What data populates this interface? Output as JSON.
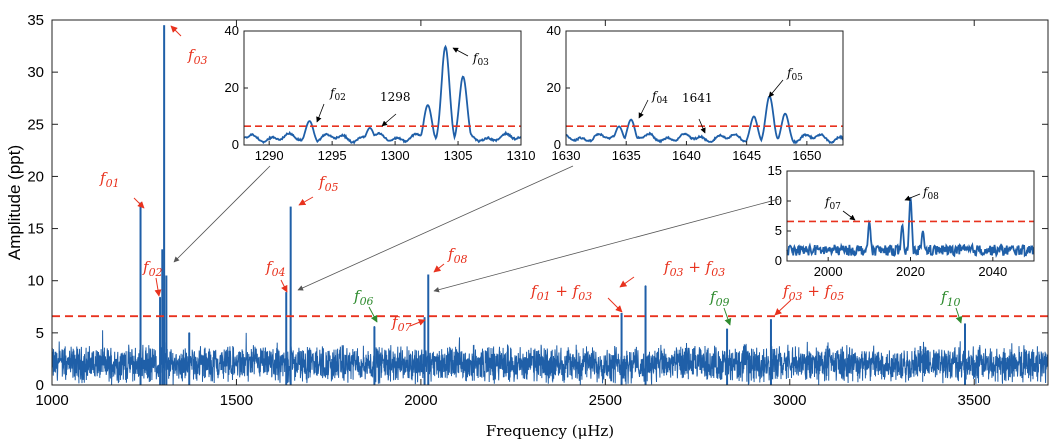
{
  "chart_data": {
    "type": "line",
    "xlabel": "Frequency (μHz)",
    "ylabel": "Amplitude (ppt)",
    "xlim": [
      1000,
      3700
    ],
    "ylim": [
      0,
      35
    ],
    "xticks": [
      "1000",
      "1500",
      "2000",
      "2500",
      "3000",
      "3500"
    ],
    "yticks": [
      "0",
      "5",
      "10",
      "15",
      "20",
      "25",
      "30",
      "35"
    ],
    "threshold": 6.6,
    "colors": {
      "series": "#1f5fa8",
      "threshold": "#e8321e",
      "red_label": "#e8321e",
      "green_label": "#2e8b2e"
    },
    "peaks": [
      {
        "x": 1240,
        "y": 17.5
      },
      {
        "x": 1293,
        "y": 8.4
      },
      {
        "x": 1299,
        "y": 13.0
      },
      {
        "x": 1304,
        "y": 34.5
      },
      {
        "x": 1310,
        "y": 10.5
      },
      {
        "x": 1372,
        "y": 5.0
      },
      {
        "x": 1635,
        "y": 8.9
      },
      {
        "x": 1647,
        "y": 17.1
      },
      {
        "x": 1874,
        "y": 5.6
      },
      {
        "x": 2010,
        "y": 6.5
      },
      {
        "x": 2020,
        "y": 10.6
      },
      {
        "x": 2544,
        "y": 6.9
      },
      {
        "x": 2609,
        "y": 9.5
      },
      {
        "x": 2830,
        "y": 5.4
      },
      {
        "x": 2949,
        "y": 6.3
      },
      {
        "x": 3475,
        "y": 5.9
      }
    ],
    "labels": [
      {
        "base": "f",
        "sub": "01",
        "color": "red"
      },
      {
        "base": "f",
        "sub": "02",
        "color": "red"
      },
      {
        "base": "f",
        "sub": "03",
        "color": "red"
      },
      {
        "base": "f",
        "sub": "04",
        "color": "red"
      },
      {
        "base": "f",
        "sub": "05",
        "color": "red"
      },
      {
        "base": "f",
        "sub": "06",
        "color": "green"
      },
      {
        "base": "f",
        "sub": "07",
        "color": "red"
      },
      {
        "base": "f",
        "sub": "08",
        "color": "red"
      },
      {
        "base": "f",
        "sub": "09",
        "color": "green"
      },
      {
        "base": "f",
        "sub": "10",
        "color": "green"
      },
      {
        "text": "f01 + f03",
        "color": "red"
      },
      {
        "text": "f03 + f03",
        "color": "red"
      },
      {
        "text": "f03 + f05",
        "color": "red"
      }
    ],
    "insets": [
      {
        "xlim": [
          1288,
          1310
        ],
        "ylim": [
          0,
          40
        ],
        "threshold": 6.6,
        "xticks": [
          "1290",
          "1295",
          "1300",
          "1305",
          "1310"
        ],
        "yticks": [
          "0",
          "20",
          "40"
        ],
        "annotations": [
          "f02",
          "1298",
          "f03"
        ],
        "peaks": [
          {
            "x": 1293.2,
            "y": 8.4
          },
          {
            "x": 1298.0,
            "y": 6.0
          },
          {
            "x": 1302.6,
            "y": 14.0
          },
          {
            "x": 1304.0,
            "y": 34.5
          },
          {
            "x": 1305.4,
            "y": 24.0
          }
        ]
      },
      {
        "xlim": [
          1630,
          1653
        ],
        "ylim": [
          0,
          40
        ],
        "threshold": 6.6,
        "xticks": [
          "1630",
          "1635",
          "1640",
          "1645",
          "1650"
        ],
        "yticks": [
          "0",
          "20",
          "40"
        ],
        "annotations": [
          "f04",
          "1641",
          "f05"
        ],
        "peaks": [
          {
            "x": 1634.4,
            "y": 6.5
          },
          {
            "x": 1635.4,
            "y": 8.9
          },
          {
            "x": 1641.0,
            "y": 2.0
          },
          {
            "x": 1645.6,
            "y": 10.0
          },
          {
            "x": 1646.9,
            "y": 17.1
          },
          {
            "x": 1648.2,
            "y": 11.0
          }
        ]
      },
      {
        "xlim": [
          1990,
          2050
        ],
        "ylim": [
          0,
          15
        ],
        "threshold": 6.6,
        "xticks": [
          "2000",
          "2020",
          "2040"
        ],
        "yticks": [
          "0",
          "5",
          "10",
          "15"
        ],
        "annotations": [
          "f07",
          "f08"
        ],
        "peaks": [
          {
            "x": 2010,
            "y": 6.5
          },
          {
            "x": 2018,
            "y": 6.0
          },
          {
            "x": 2020,
            "y": 10.6
          },
          {
            "x": 2023,
            "y": 5.0
          }
        ]
      }
    ]
  }
}
